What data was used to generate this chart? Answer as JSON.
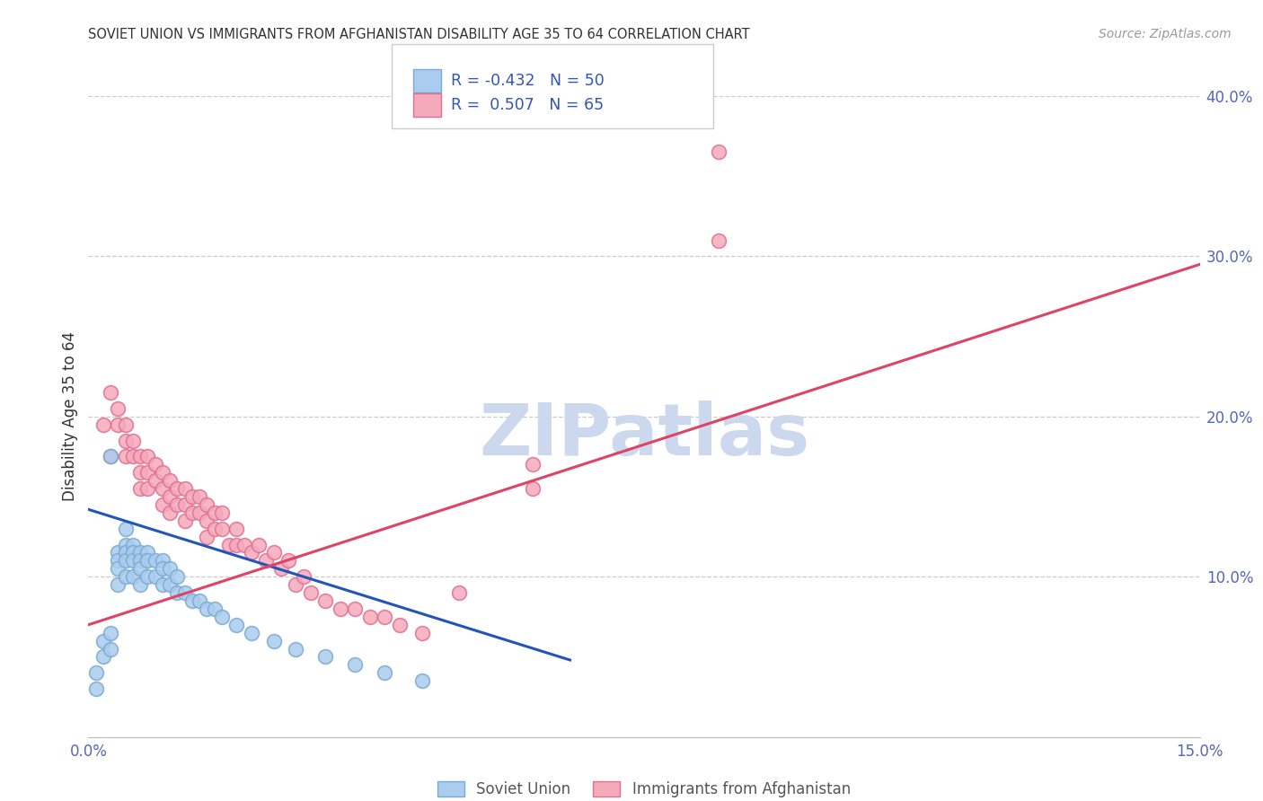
{
  "title": "SOVIET UNION VS IMMIGRANTS FROM AFGHANISTAN DISABILITY AGE 35 TO 64 CORRELATION CHART",
  "source": "Source: ZipAtlas.com",
  "ylabel": "Disability Age 35 to 64",
  "xlim": [
    0.0,
    0.15
  ],
  "ylim": [
    0.0,
    0.4
  ],
  "xticks": [
    0.0,
    0.03,
    0.06,
    0.09,
    0.12,
    0.15
  ],
  "xtick_labels": [
    "0.0%",
    "",
    "",
    "",
    "",
    "15.0%"
  ],
  "yticks": [
    0.0,
    0.1,
    0.2,
    0.3,
    0.4
  ],
  "ytick_labels_right": [
    "",
    "10.0%",
    "20.0%",
    "30.0%",
    "40.0%"
  ],
  "soviet_color": "#aaccee",
  "soviet_edge_color": "#7aaad0",
  "afghanistan_color": "#f5aabc",
  "afghanistan_edge_color": "#e07090",
  "blue_line_color": "#2255bb",
  "pink_line_color": "#dd4466",
  "R_soviet": -0.432,
  "N_soviet": 50,
  "R_afghanistan": 0.507,
  "N_afghanistan": 65,
  "watermark": "ZIPatlas",
  "watermark_color": "#ccd8ee",
  "legend_label_soviet": "Soviet Union",
  "legend_label_afghanistan": "Immigrants from Afghanistan",
  "soviet_x": [
    0.001,
    0.002,
    0.002,
    0.003,
    0.003,
    0.003,
    0.004,
    0.004,
    0.004,
    0.004,
    0.005,
    0.005,
    0.005,
    0.005,
    0.005,
    0.006,
    0.006,
    0.006,
    0.006,
    0.007,
    0.007,
    0.007,
    0.007,
    0.008,
    0.008,
    0.008,
    0.009,
    0.009,
    0.01,
    0.01,
    0.01,
    0.011,
    0.011,
    0.012,
    0.012,
    0.013,
    0.014,
    0.015,
    0.016,
    0.017,
    0.018,
    0.02,
    0.022,
    0.025,
    0.028,
    0.032,
    0.036,
    0.04,
    0.045,
    0.001
  ],
  "soviet_y": [
    0.03,
    0.06,
    0.05,
    0.175,
    0.065,
    0.055,
    0.115,
    0.11,
    0.105,
    0.095,
    0.13,
    0.12,
    0.115,
    0.11,
    0.1,
    0.12,
    0.115,
    0.11,
    0.1,
    0.115,
    0.11,
    0.105,
    0.095,
    0.115,
    0.11,
    0.1,
    0.11,
    0.1,
    0.11,
    0.105,
    0.095,
    0.105,
    0.095,
    0.1,
    0.09,
    0.09,
    0.085,
    0.085,
    0.08,
    0.08,
    0.075,
    0.07,
    0.065,
    0.06,
    0.055,
    0.05,
    0.045,
    0.04,
    0.035,
    0.04
  ],
  "afghanistan_x": [
    0.002,
    0.003,
    0.003,
    0.004,
    0.004,
    0.005,
    0.005,
    0.005,
    0.006,
    0.006,
    0.007,
    0.007,
    0.007,
    0.008,
    0.008,
    0.008,
    0.009,
    0.009,
    0.01,
    0.01,
    0.01,
    0.011,
    0.011,
    0.011,
    0.012,
    0.012,
    0.013,
    0.013,
    0.013,
    0.014,
    0.014,
    0.015,
    0.015,
    0.016,
    0.016,
    0.016,
    0.017,
    0.017,
    0.018,
    0.018,
    0.019,
    0.02,
    0.02,
    0.021,
    0.022,
    0.023,
    0.024,
    0.025,
    0.026,
    0.027,
    0.028,
    0.029,
    0.03,
    0.032,
    0.034,
    0.036,
    0.038,
    0.04,
    0.042,
    0.045,
    0.05,
    0.06,
    0.085,
    0.085,
    0.06
  ],
  "afghanistan_y": [
    0.195,
    0.215,
    0.175,
    0.205,
    0.195,
    0.195,
    0.185,
    0.175,
    0.185,
    0.175,
    0.175,
    0.165,
    0.155,
    0.175,
    0.165,
    0.155,
    0.17,
    0.16,
    0.165,
    0.155,
    0.145,
    0.16,
    0.15,
    0.14,
    0.155,
    0.145,
    0.155,
    0.145,
    0.135,
    0.15,
    0.14,
    0.15,
    0.14,
    0.145,
    0.135,
    0.125,
    0.14,
    0.13,
    0.14,
    0.13,
    0.12,
    0.13,
    0.12,
    0.12,
    0.115,
    0.12,
    0.11,
    0.115,
    0.105,
    0.11,
    0.095,
    0.1,
    0.09,
    0.085,
    0.08,
    0.08,
    0.075,
    0.075,
    0.07,
    0.065,
    0.09,
    0.155,
    0.31,
    0.365,
    0.17
  ],
  "blue_line_x": [
    0.0,
    0.065
  ],
  "blue_line_y": [
    0.142,
    0.048
  ],
  "pink_line_x": [
    0.0,
    0.15
  ],
  "pink_line_y": [
    0.07,
    0.295
  ]
}
